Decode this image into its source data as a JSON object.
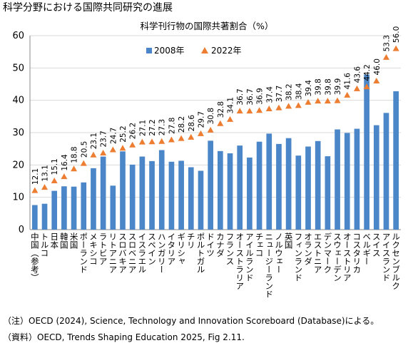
{
  "chart_data": {
    "type": "bar_marker",
    "title": "科学分野における国際共同研究の進展",
    "subtitle": "科学刊行物の国際共著割合（%）",
    "categories": [
      "中国（参考）",
      "トルコ",
      "日本",
      "韓国",
      "米国",
      "ポーランド",
      "メキシコ",
      "ラトビア",
      "リトアニア",
      "スロバキア",
      "スロベニア",
      "イスラエル",
      "スペイン",
      "ハンガリー",
      "イタリア",
      "ギリシャ",
      "チリ",
      "ポルトガル",
      "ドイツ",
      "カナダ",
      "フランス",
      "オーストラリア",
      "アイルランド",
      "チェコ",
      "ニュージーランド",
      "ノルウェー",
      "英国",
      "フィンランド",
      "オランダ",
      "エストニア",
      "デンマーク",
      "スウェーデン",
      "オーストリア",
      "コスタリカ",
      "ベルギー",
      "スイス",
      "アイスランド",
      "ルクセンブルク"
    ],
    "series": [
      {
        "name": "2008年",
        "color": "#4a86c8",
        "values": [
          7.6,
          8.0,
          12.0,
          13.4,
          13.3,
          14.6,
          19.0,
          22.6,
          13.6,
          24.2,
          20.1,
          22.6,
          21.2,
          24.6,
          21.0,
          21.3,
          19.3,
          18.2,
          27.5,
          24.3,
          23.6,
          26.0,
          22.3,
          27.2,
          29.7,
          26.5,
          28.3,
          22.9,
          25.7,
          27.4,
          22.7,
          31.0,
          29.9,
          31.2,
          48.0,
          32.3,
          36.1,
          42.8
        ]
      },
      {
        "name": "2022年",
        "color": "#ed7d31",
        "values": [
          12.1,
          13.1,
          15.1,
          16.4,
          18.8,
          20.5,
          23.1,
          23.7,
          24.7,
          25.2,
          26.2,
          27.1,
          27.2,
          27.3,
          27.8,
          28.2,
          28.6,
          29.7,
          30.8,
          32.8,
          34.1,
          36.7,
          36.7,
          36.9,
          37.4,
          37.7,
          38.2,
          38.4,
          39.4,
          39.8,
          39.8,
          39.9,
          41.6,
          43.6,
          44.2,
          46.0,
          53.3,
          56.0
        ],
        "value_labels": [
          "12.1",
          "13.1",
          "15.1",
          "16.4",
          "18.8",
          "20.5",
          "23.1",
          "23.7",
          "24.7",
          "25.2",
          "26.2",
          "27.1",
          "27.2",
          "27.3",
          "27.8",
          "28.2",
          "28.6",
          "29.7",
          "30.8",
          "32.8",
          "34.1",
          "36.7",
          "36.7",
          "36.9",
          "37.4",
          "37.7",
          "38.2",
          "38.4",
          "39.4",
          "39.8",
          "39.8",
          "39.9",
          "41.6",
          "43.6",
          "44.2",
          "46.0",
          "53.3",
          "56.0"
        ]
      }
    ],
    "ylim": [
      0,
      60
    ],
    "yticks": [
      0,
      10,
      20,
      30,
      40,
      50,
      60
    ],
    "grid": true,
    "notes": [
      "（注）OECD (2024), Science, Technology and Innovation Scoreboard (Database)による。",
      "（資料）OECD, Trends Shaping Education 2025, Fig 2.11."
    ]
  }
}
